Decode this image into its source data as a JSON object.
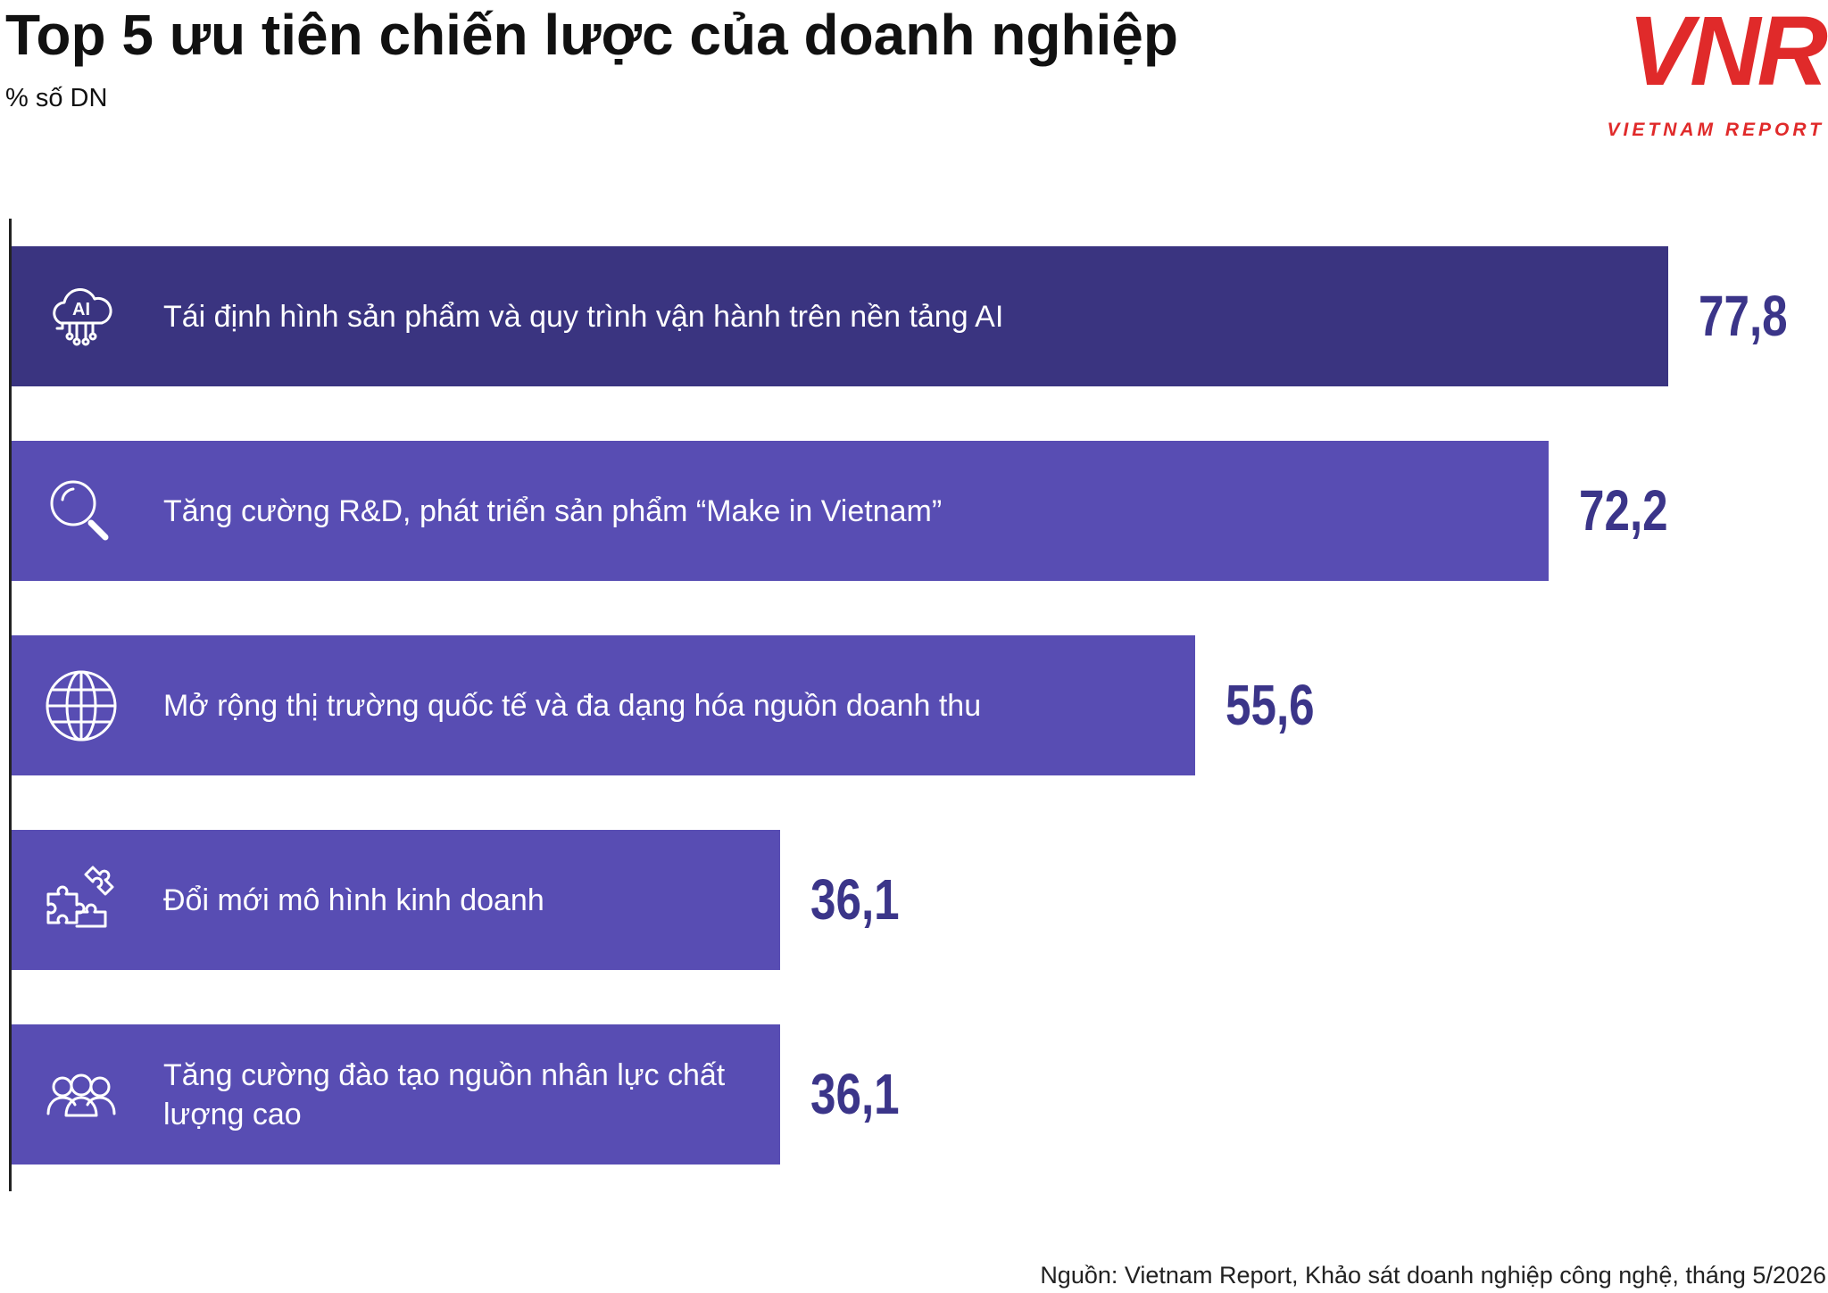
{
  "chart_data": {
    "type": "hbar",
    "title": "Top 5 ưu tiên chiến lược của doanh nghiệp",
    "subtitle": "% số DN",
    "categories": [
      "Tái định hình sản phẩm và quy trình vận hành trên nền tảng AI",
      "Tăng cường R&D, phát triển sản phẩm “Make in Vietnam”",
      "Mở rộng thị trường quốc tế và đa dạng hóa nguồn doanh thu",
      "Đổi mới mô hình kinh doanh",
      "Tăng cường đào tạo nguồn nhân lực chất lượng cao"
    ],
    "values": [
      77.8,
      72.2,
      55.6,
      36.1,
      36.1
    ],
    "value_labels": [
      "77,8",
      "72,2",
      "55,6",
      "36,1",
      "36,1"
    ],
    "colors": [
      "#3a3480",
      "#584db3",
      "#584db3",
      "#584db3",
      "#584db3"
    ],
    "label_color": "#3b3589",
    "icon_text": "AI",
    "source": "Nguồn: Vietnam Report, Khảo sát doanh nghiệp công nghệ, tháng 5/2026"
  },
  "logo": {
    "mark": "VNR",
    "text": "VIETNAM REPORT"
  }
}
